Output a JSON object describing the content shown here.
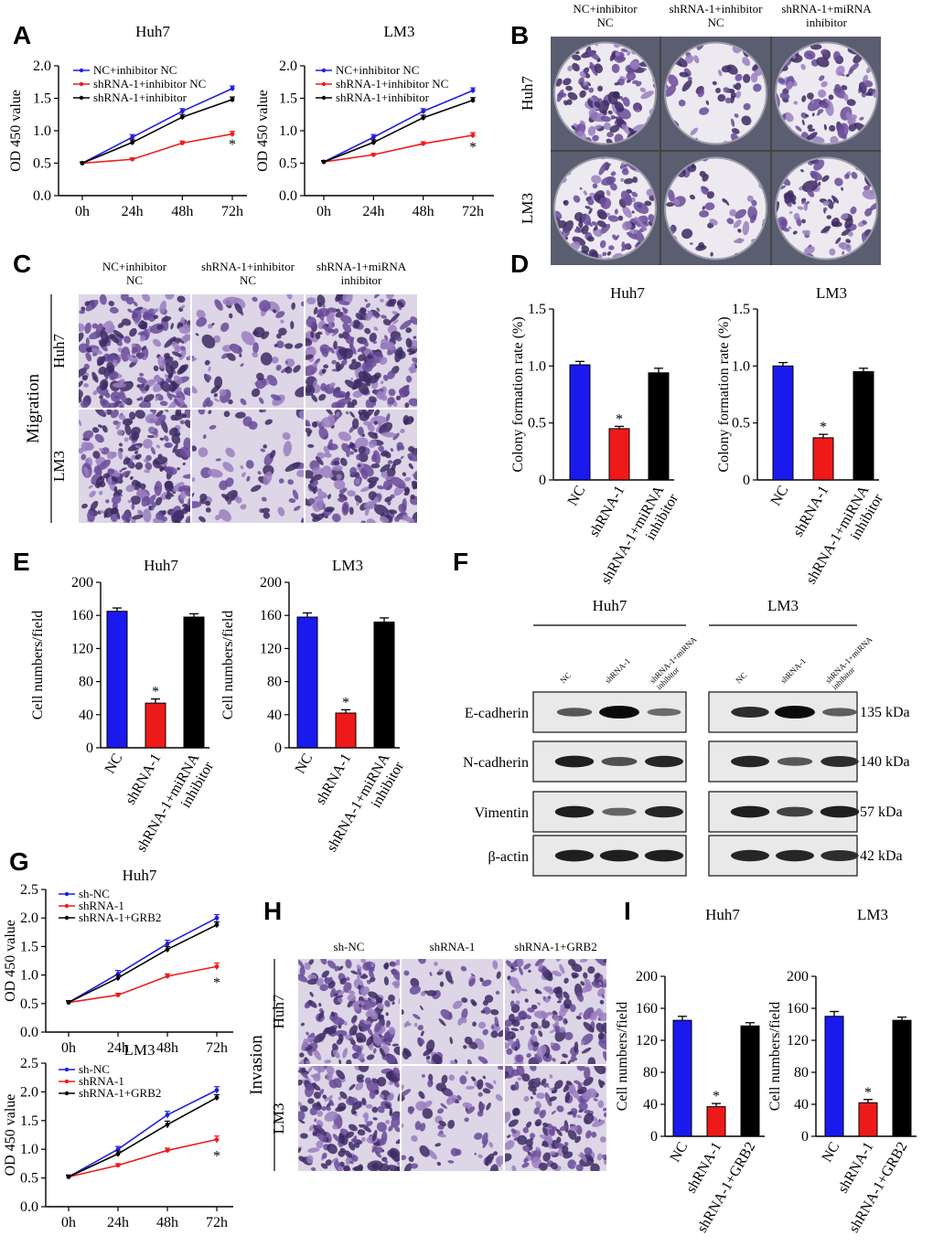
{
  "panels": {
    "A": {
      "label": "A",
      "chart_data": [
        {
          "type": "line",
          "title": "Huh7",
          "xlabel": "",
          "ylabel": "OD 450 value",
          "categories": [
            "0h",
            "24h",
            "48h",
            "72h"
          ],
          "yticks": [
            "0.0",
            "0.5",
            "1.0",
            "1.5",
            "2.0"
          ],
          "ylim": [
            0,
            2.0
          ],
          "series": [
            {
              "name": "NC+inhibitor NC",
              "color": "#1f1fe0",
              "values": [
                0.5,
                0.9,
                1.3,
                1.65
              ],
              "err": [
                0.02,
                0.04,
                0.04,
                0.04
              ]
            },
            {
              "name": "shRNA-1+inhibitor NC",
              "color": "#ee1c1c",
              "values": [
                0.5,
                0.56,
                0.81,
                0.95
              ],
              "err": [
                0.02,
                0.02,
                0.03,
                0.04
              ]
            },
            {
              "name": "shRNA-1+inhibitor",
              "color": "#000000",
              "values": [
                0.5,
                0.82,
                1.21,
                1.48
              ],
              "err": [
                0.02,
                0.04,
                0.04,
                0.04
              ]
            }
          ],
          "annotations": [
            {
              "text": "*",
              "x": "72h",
              "y": 0.8
            }
          ]
        },
        {
          "type": "line",
          "title": "LM3",
          "xlabel": "",
          "ylabel": "OD 450 value",
          "categories": [
            "0h",
            "24h",
            "48h",
            "72h"
          ],
          "yticks": [
            "0.0",
            "0.5",
            "1.0",
            "1.5",
            "2.0"
          ],
          "ylim": [
            0,
            2.0
          ],
          "series": [
            {
              "name": "NC+inhibitor NC",
              "color": "#1f1fe0",
              "values": [
                0.52,
                0.9,
                1.3,
                1.62
              ],
              "err": [
                0.02,
                0.04,
                0.04,
                0.04
              ]
            },
            {
              "name": "shRNA-1+inhibitor NC",
              "color": "#ee1c1c",
              "values": [
                0.52,
                0.63,
                0.8,
                0.93
              ],
              "err": [
                0.02,
                0.02,
                0.03,
                0.04
              ]
            },
            {
              "name": "shRNA-1+inhibitor",
              "color": "#000000",
              "values": [
                0.52,
                0.82,
                1.2,
                1.47
              ],
              "err": [
                0.02,
                0.04,
                0.04,
                0.04
              ]
            }
          ],
          "annotations": [
            {
              "text": "*",
              "x": "72h",
              "y": 0.76
            }
          ]
        }
      ]
    },
    "B": {
      "label": "B",
      "columns": [
        "NC+inhibitor\nNC",
        "shRNA-1+inhibitor\nNC",
        "shRNA-1+miRNA\ninhibitor"
      ],
      "rows": [
        "Huh7",
        "LM3"
      ],
      "density": [
        [
          1.0,
          0.45,
          0.9
        ],
        [
          1.0,
          0.4,
          0.85
        ]
      ]
    },
    "C": {
      "label": "C",
      "columns": [
        "NC+inhibitor\nNC",
        "shRNA-1+inhibitor\nNC",
        "shRNA-1+miRNA\ninhibitor"
      ],
      "rows": [
        "Huh7",
        "LM3"
      ],
      "side_label": "Migration",
      "density": [
        [
          1.0,
          0.35,
          0.95
        ],
        [
          1.0,
          0.3,
          0.9
        ]
      ]
    },
    "D": {
      "label": "D",
      "chart_data": [
        {
          "type": "bar",
          "title": "Huh7",
          "ylabel": "Colony formation rate (%)",
          "categories": [
            "NC",
            "shRNA-1",
            "shRNA-1+miRNA\ninhibitor"
          ],
          "values": [
            1.01,
            0.45,
            0.94
          ],
          "err": [
            0.03,
            0.02,
            0.04
          ],
          "colors": [
            "#1a1aee",
            "#ee1a1a",
            "#000000"
          ],
          "yticks": [
            "0",
            "0.5",
            "1.0",
            "1.5"
          ],
          "ylim": [
            0,
            1.5
          ],
          "annotations": [
            {
              "text": "*",
              "category": "shRNA-1"
            }
          ]
        },
        {
          "type": "bar",
          "title": "LM3",
          "ylabel": "Colony formation rate (%)",
          "categories": [
            "NC",
            "shRNA-1",
            "shRNA-1+miRNA\ninhibitor"
          ],
          "values": [
            1.0,
            0.37,
            0.95
          ],
          "err": [
            0.03,
            0.03,
            0.03
          ],
          "colors": [
            "#1a1aee",
            "#ee1a1a",
            "#000000"
          ],
          "yticks": [
            "0",
            "0.5",
            "1.0",
            "1.5"
          ],
          "ylim": [
            0,
            1.5
          ],
          "annotations": [
            {
              "text": "*",
              "category": "shRNA-1"
            }
          ]
        }
      ]
    },
    "E": {
      "label": "E",
      "chart_data": [
        {
          "type": "bar",
          "title": "Huh7",
          "ylabel": "Cell numbers/field",
          "categories": [
            "NC",
            "shRNA-1",
            "shRNA-1+miRNA\ninhibitor"
          ],
          "values": [
            165,
            54,
            158
          ],
          "err": [
            4,
            5,
            4
          ],
          "colors": [
            "#1a1aee",
            "#ee1a1a",
            "#000000"
          ],
          "yticks": [
            "0",
            "40",
            "80",
            "120",
            "160",
            "200"
          ],
          "ylim": [
            0,
            200
          ],
          "annotations": [
            {
              "text": "*",
              "category": "shRNA-1"
            }
          ]
        },
        {
          "type": "bar",
          "title": "LM3",
          "ylabel": "Cell numbers/field",
          "categories": [
            "NC",
            "shRNA-1",
            "shRNA-1+miRNA\ninhibitor"
          ],
          "values": [
            158,
            42,
            152
          ],
          "err": [
            5,
            4,
            5
          ],
          "colors": [
            "#1a1aee",
            "#ee1a1a",
            "#000000"
          ],
          "yticks": [
            "0",
            "40",
            "80",
            "120",
            "160",
            "200"
          ],
          "ylim": [
            0,
            200
          ],
          "annotations": [
            {
              "text": "*",
              "category": "shRNA-1"
            }
          ]
        }
      ]
    },
    "F": {
      "label": "F",
      "groups": [
        "Huh7",
        "LM3"
      ],
      "lanes": [
        "NC",
        "shRNA-1",
        "shRNA-1+miRNA\ninhibitor"
      ],
      "proteins": [
        {
          "name": "E-cadherin",
          "kda": "135 kDa",
          "intensity": [
            [
              0.45,
              1.0,
              0.3
            ],
            [
              0.75,
              1.0,
              0.4
            ]
          ]
        },
        {
          "name": "N-cadherin",
          "kda": "140 kDa",
          "intensity": [
            [
              0.85,
              0.5,
              0.8
            ],
            [
              0.8,
              0.45,
              0.75
            ]
          ]
        },
        {
          "name": "Vimentin",
          "kda": "57 kDa",
          "intensity": [
            [
              0.85,
              0.35,
              0.8
            ],
            [
              0.85,
              0.6,
              0.85
            ]
          ]
        },
        {
          "name": "β-actin",
          "kda": "42 kDa",
          "intensity": [
            [
              0.85,
              0.85,
              0.85
            ],
            [
              0.8,
              0.8,
              0.75
            ]
          ]
        }
      ]
    },
    "G": {
      "label": "G",
      "chart_data": [
        {
          "type": "line",
          "title": "Huh7",
          "ylabel": "OD 450 value",
          "categories": [
            "0h",
            "24h",
            "48h",
            "72h"
          ],
          "yticks": [
            "0.0",
            "0.5",
            "1.0",
            "1.5",
            "2.0",
            "2.5"
          ],
          "ylim": [
            0,
            2.5
          ],
          "series": [
            {
              "name": "sh-NC",
              "color": "#1f1fe0",
              "values": [
                0.52,
                1.02,
                1.55,
                2.0
              ],
              "err": [
                0.03,
                0.06,
                0.06,
                0.06
              ]
            },
            {
              "name": "shRNA-1",
              "color": "#ee1c1c",
              "values": [
                0.52,
                0.65,
                0.98,
                1.15
              ],
              "err": [
                0.03,
                0.03,
                0.04,
                0.06
              ]
            },
            {
              "name": "shRNA-1+GRB2",
              "color": "#000000",
              "values": [
                0.52,
                0.95,
                1.45,
                1.88
              ],
              "err": [
                0.03,
                0.05,
                0.05,
                0.05
              ]
            }
          ],
          "annotations": [
            {
              "text": "*",
              "x": "72h",
              "y": 0.88
            }
          ]
        },
        {
          "type": "line",
          "title": "LM3",
          "ylabel": "OD 450 value",
          "categories": [
            "0h",
            "24h",
            "48h",
            "72h"
          ],
          "yticks": [
            "0.0",
            "0.5",
            "1.0",
            "1.5",
            "2.0",
            "2.5"
          ],
          "ylim": [
            0,
            2.5
          ],
          "series": [
            {
              "name": "sh-NC",
              "color": "#1f1fe0",
              "values": [
                0.52,
                1.0,
                1.6,
                2.03
              ],
              "err": [
                0.03,
                0.05,
                0.06,
                0.06
              ]
            },
            {
              "name": "shRNA-1",
              "color": "#ee1c1c",
              "values": [
                0.52,
                0.72,
                0.98,
                1.17
              ],
              "err": [
                0.03,
                0.03,
                0.04,
                0.06
              ]
            },
            {
              "name": "shRNA-1+GRB2",
              "color": "#000000",
              "values": [
                0.52,
                0.92,
                1.43,
                1.9
              ],
              "err": [
                0.03,
                0.05,
                0.06,
                0.05
              ]
            }
          ],
          "annotations": [
            {
              "text": "*",
              "x": "72h",
              "y": 0.9
            }
          ]
        }
      ]
    },
    "H": {
      "label": "H",
      "columns": [
        "sh-NC",
        "shRNA-1",
        "shRNA-1+GRB2"
      ],
      "rows": [
        "Huh7",
        "LM3"
      ],
      "side_label": "Invasion",
      "density": [
        [
          1.0,
          0.4,
          0.85
        ],
        [
          0.95,
          0.4,
          0.8
        ]
      ]
    },
    "I": {
      "label": "I",
      "chart_data": [
        {
          "type": "bar",
          "title": "Huh7",
          "ylabel": "Cell numbers/field",
          "categories": [
            "NC",
            "shRNA-1",
            "shRNA-1+GRB2"
          ],
          "values": [
            145,
            37,
            138
          ],
          "err": [
            5,
            4,
            4
          ],
          "colors": [
            "#1a1aee",
            "#ee1a1a",
            "#000000"
          ],
          "yticks": [
            "0",
            "40",
            "80",
            "120",
            "160",
            "200"
          ],
          "ylim": [
            0,
            200
          ],
          "annotations": [
            {
              "text": "*",
              "category": "shRNA-1"
            }
          ]
        },
        {
          "type": "bar",
          "title": "LM3",
          "ylabel": "Cell numbers/field",
          "categories": [
            "NC",
            "shRNA-1",
            "shRNA-1+GRB2"
          ],
          "values": [
            150,
            42,
            145
          ],
          "err": [
            6,
            4,
            4
          ],
          "colors": [
            "#1a1aee",
            "#ee1a1a",
            "#000000"
          ],
          "yticks": [
            "0",
            "40",
            "80",
            "120",
            "160",
            "200"
          ],
          "ylim": [
            0,
            200
          ],
          "annotations": [
            {
              "text": "*",
              "category": "shRNA-1"
            }
          ]
        }
      ]
    }
  }
}
